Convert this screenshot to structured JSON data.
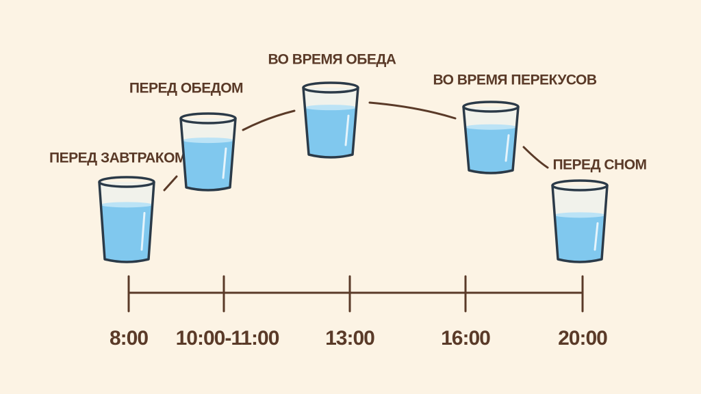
{
  "steps": [
    {
      "label": "ПЕРЕД ЗАВТРАКОМ",
      "time": "8:00"
    },
    {
      "label": "ПЕРЕД ОБЕДОМ",
      "time": "10:00-11:00"
    },
    {
      "label": "ВО ВРЕМЯ ОБЕДА",
      "time": "13:00"
    },
    {
      "label": "ВО ВРЕМЯ ПЕРЕКУСОВ",
      "time": "16:00"
    },
    {
      "label": "ПЕРЕД СНОМ",
      "time": "20:00"
    }
  ]
}
